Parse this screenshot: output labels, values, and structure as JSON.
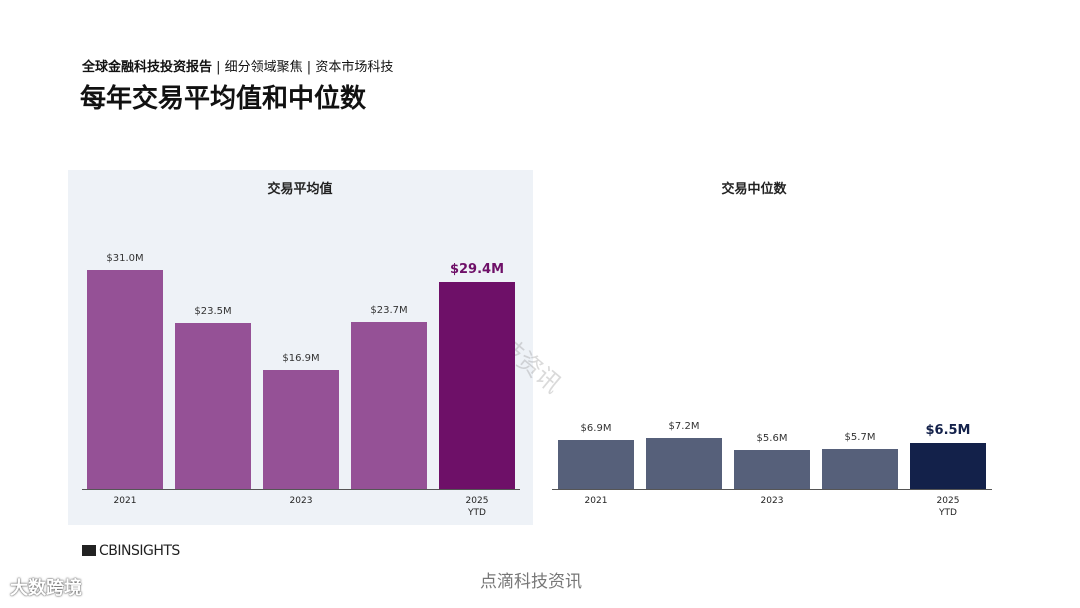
{
  "header": {
    "report": "全球金融科技投资报告",
    "section": "| 细分领域聚焦 | 资本市场科技",
    "title": "每年交易平均值和中位数"
  },
  "chart_data": [
    {
      "type": "bar",
      "title": "交易平均值",
      "categories": [
        "2021",
        null,
        "2023",
        null,
        "2025 YTD"
      ],
      "values": [
        31.0,
        23.5,
        16.9,
        23.7,
        29.4
      ],
      "value_labels": [
        "$31.0M",
        "$23.5M",
        "$16.9M",
        "$23.7M",
        "$29.4M"
      ],
      "colors": [
        "#955196",
        "#955196",
        "#955196",
        "#955196",
        "#6e1068"
      ]
    },
    {
      "type": "bar",
      "title": "交易中位数",
      "categories": [
        "2021",
        null,
        "2023",
        null,
        "2025 YTD"
      ],
      "values": [
        6.9,
        7.2,
        5.6,
        5.7,
        6.5
      ],
      "value_labels": [
        "$6.9M",
        "$7.2M",
        "$5.6M",
        "$5.7M",
        "$6.5M"
      ],
      "colors": [
        "#56607a",
        "#56607a",
        "#56607a",
        "#56607a",
        "#13214a"
      ]
    }
  ],
  "footer": {
    "brand": "CBINSIGHTS",
    "watermark": "点滴科技资讯",
    "watermark_diag": "点滴科技资讯",
    "logo": "大数跨境"
  }
}
